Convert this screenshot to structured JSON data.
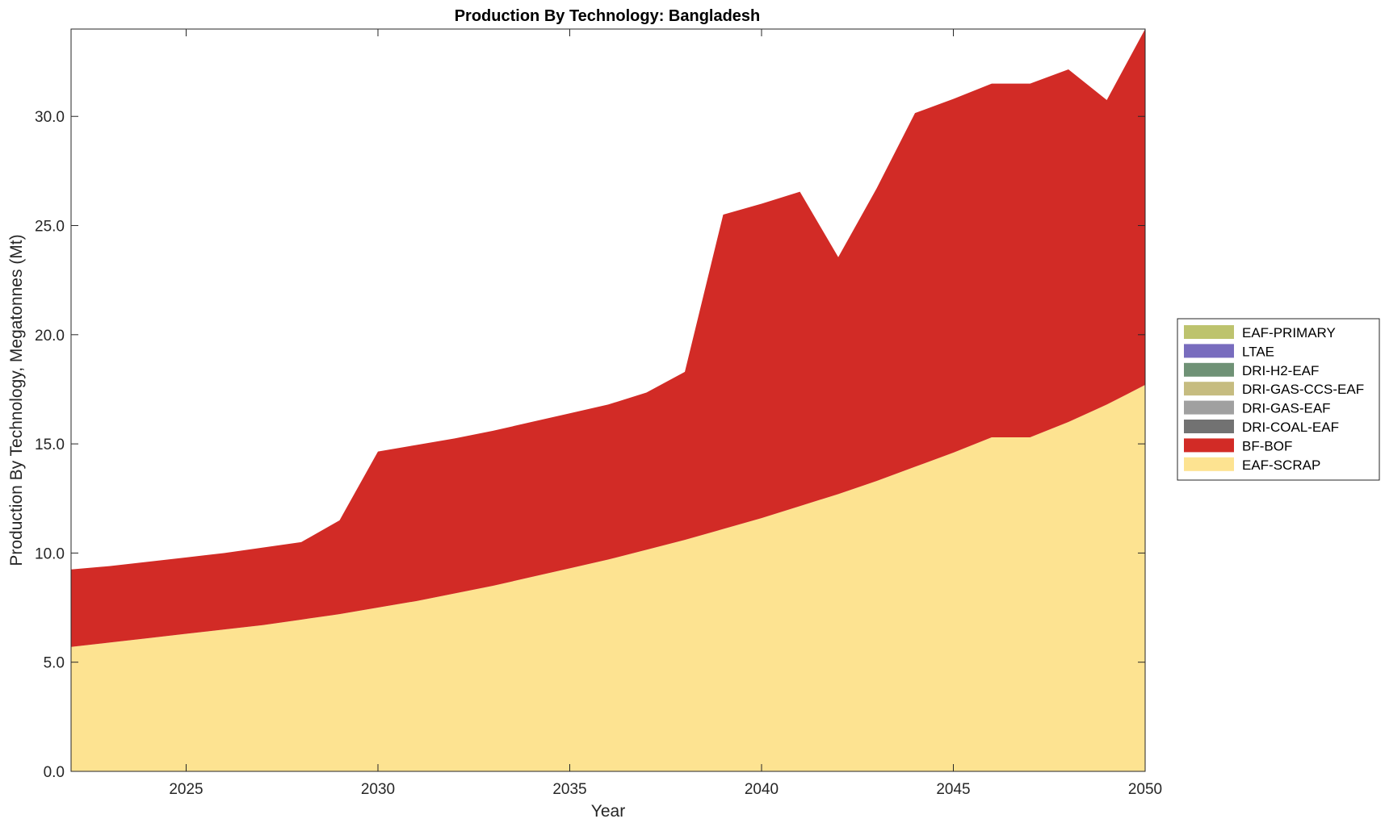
{
  "chart_data": {
    "type": "area",
    "stacked": true,
    "title": "Production By Technology: Bangladesh",
    "xlabel": "Year",
    "ylabel": "Production By Technology, Megatonnes (Mt)",
    "xlim": [
      2022,
      2050
    ],
    "ylim": [
      0,
      34
    ],
    "x_ticks": [
      2025,
      2030,
      2035,
      2040,
      2045,
      2050
    ],
    "y_ticks": [
      0,
      5,
      10,
      15,
      20,
      25,
      30
    ],
    "y_tick_labels": [
      "0.0",
      "5.0",
      "10.0",
      "15.0",
      "20.0",
      "25.0",
      "30.0"
    ],
    "grid": false,
    "legend_position": "right",
    "x": [
      2022,
      2023,
      2024,
      2025,
      2026,
      2027,
      2028,
      2029,
      2030,
      2031,
      2032,
      2033,
      2034,
      2035,
      2036,
      2037,
      2038,
      2039,
      2040,
      2041,
      2042,
      2043,
      2044,
      2045,
      2046,
      2047,
      2048,
      2049,
      2050
    ],
    "series": [
      {
        "name": "EAF-SCRAP",
        "color": "#FDE391",
        "values": [
          5.7,
          5.9,
          6.1,
          6.3,
          6.5,
          6.7,
          6.95,
          7.2,
          7.5,
          7.8,
          8.15,
          8.5,
          8.9,
          9.3,
          9.7,
          10.15,
          10.6,
          11.1,
          11.6,
          12.15,
          12.7,
          13.3,
          13.95,
          14.6,
          15.3,
          15.3,
          16.0,
          16.8,
          17.7
        ]
      },
      {
        "name": "BF-BOF",
        "color": "#D22B26",
        "values": [
          3.55,
          3.5,
          3.5,
          3.5,
          3.5,
          3.55,
          3.55,
          4.3,
          7.15,
          7.15,
          7.1,
          7.1,
          7.1,
          7.1,
          7.1,
          7.2,
          7.7,
          14.4,
          14.4,
          14.4,
          10.85,
          13.4,
          16.2,
          16.2,
          16.2,
          16.2,
          16.15,
          13.95,
          16.3
        ]
      },
      {
        "name": "DRI-COAL-EAF",
        "color": "#727272",
        "values": [
          0,
          0,
          0,
          0,
          0,
          0,
          0,
          0,
          0,
          0,
          0,
          0,
          0,
          0,
          0,
          0,
          0,
          0,
          0,
          0,
          0,
          0,
          0,
          0,
          0,
          0,
          0,
          0,
          0
        ]
      },
      {
        "name": "DRI-GAS-EAF",
        "color": "#A0A0A0",
        "values": [
          0,
          0,
          0,
          0,
          0,
          0,
          0,
          0,
          0,
          0,
          0,
          0,
          0,
          0,
          0,
          0,
          0,
          0,
          0,
          0,
          0,
          0,
          0,
          0,
          0,
          0,
          0,
          0,
          0
        ]
      },
      {
        "name": "DRI-GAS-CCS-EAF",
        "color": "#C6BC80",
        "values": [
          0,
          0,
          0,
          0,
          0,
          0,
          0,
          0,
          0,
          0,
          0,
          0,
          0,
          0,
          0,
          0,
          0,
          0,
          0,
          0,
          0,
          0,
          0,
          0,
          0,
          0,
          0,
          0,
          0
        ]
      },
      {
        "name": "DRI-H2-EAF",
        "color": "#6F9276",
        "values": [
          0,
          0,
          0,
          0,
          0,
          0,
          0,
          0,
          0,
          0,
          0,
          0,
          0,
          0,
          0,
          0,
          0,
          0,
          0,
          0,
          0,
          0,
          0,
          0,
          0,
          0,
          0,
          0,
          0
        ]
      },
      {
        "name": "LTAE",
        "color": "#786CBE",
        "values": [
          0,
          0,
          0,
          0,
          0,
          0,
          0,
          0,
          0,
          0,
          0,
          0,
          0,
          0,
          0,
          0,
          0,
          0,
          0,
          0,
          0,
          0,
          0,
          0,
          0,
          0,
          0,
          0,
          0
        ]
      },
      {
        "name": "EAF-PRIMARY",
        "color": "#BDC36E",
        "values": [
          0,
          0,
          0,
          0,
          0,
          0,
          0,
          0,
          0,
          0,
          0,
          0,
          0,
          0,
          0,
          0,
          0,
          0,
          0,
          0,
          0,
          0,
          0,
          0,
          0,
          0,
          0,
          0,
          0
        ]
      }
    ],
    "legend_order": [
      "EAF-PRIMARY",
      "LTAE",
      "DRI-H2-EAF",
      "DRI-GAS-CCS-EAF",
      "DRI-GAS-EAF",
      "DRI-COAL-EAF",
      "BF-BOF",
      "EAF-SCRAP"
    ]
  }
}
